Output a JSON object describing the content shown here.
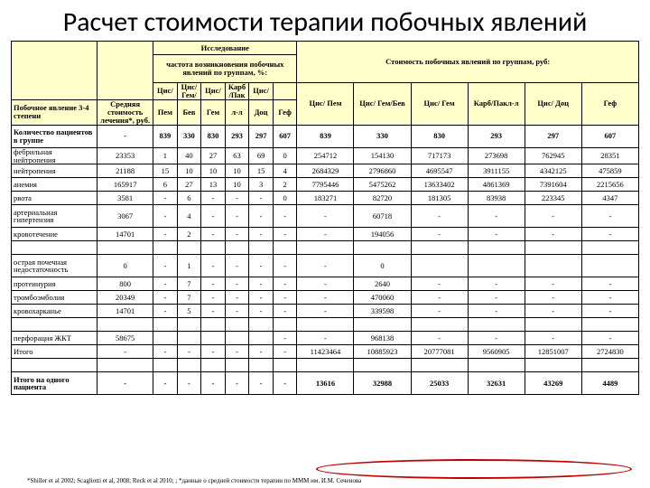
{
  "title": "Расчет стоимости терапии побочных явлений",
  "headers": {
    "study": "Исследование",
    "freq_block": "частота возникновения побочных явлений по группам, %:",
    "cost_block": "Стоимость побочных явлений по группам, руб:",
    "side_effect": "Побочное явление 3-4 степени",
    "avg_cost": "Средняя стоимость лечения*, руб.",
    "f": {
      "c1a": "Цис/",
      "c1b": "Пем",
      "c2a": "Цис/ Гем/",
      "c2b": "Бев",
      "c3a": "Цис/",
      "c3b": "Гем",
      "c4a": "Карб /Пак",
      "c4b": "л-л",
      "c5a": "Цис/",
      "c5b": "Доц",
      "c6a": "",
      "c6b": "Геф"
    },
    "cost": {
      "c1": "Цис/ Пем",
      "c2": "Цис/ Гем/Бев",
      "c3": "Цис/ Гем",
      "c4": "Карб/Пакл-л",
      "c5": "Цис/ Доц",
      "c6": "Геф"
    }
  },
  "rows": [
    {
      "label": "Количество пациентов в группе",
      "bold": true,
      "avg": "-",
      "f": [
        "839",
        "330",
        "830",
        "293",
        "297",
        "607"
      ],
      "c": [
        "839",
        "330",
        "830",
        "293",
        "297",
        "607"
      ],
      "spacer": false,
      "tall": true
    },
    {
      "label": "фебрильная нейтропения",
      "avg": "23353",
      "f": [
        "1",
        "40",
        "27",
        "63",
        "69",
        "0"
      ],
      "c": [
        "254712",
        "154130",
        "717173",
        "273698",
        "762945",
        "28351"
      ]
    },
    {
      "label": "нейтропения",
      "avg": "21188",
      "f": [
        "15",
        "10",
        "10",
        "10",
        "15",
        "4"
      ],
      "c": [
        "2684329",
        "2796860",
        "4695547",
        "3911155",
        "4342125",
        "475859"
      ]
    },
    {
      "label": "анемия",
      "avg": "165917",
      "f": [
        "6",
        "27",
        "13",
        "10",
        "3",
        "2"
      ],
      "c": [
        "7795446",
        "5475262",
        "13633402",
        "4861369",
        "7391604",
        "2215656"
      ]
    },
    {
      "label": "рвота",
      "avg": "3581",
      "f": [
        "-",
        "6",
        "-",
        "-",
        "-",
        "0"
      ],
      "c": [
        "183271",
        "82720",
        "181305",
        "83938",
        "223345",
        "4347"
      ]
    },
    {
      "label": "артериальная гипертензия",
      "avg": "3067",
      "f": [
        "-",
        "4",
        "-",
        "-",
        "-",
        "-"
      ],
      "c": [
        "-",
        "60718",
        "-",
        "-",
        "-",
        "-"
      ],
      "tall": true
    },
    {
      "label": "кровотечение",
      "avg": "14701",
      "f": [
        "-",
        "2",
        "-",
        "-",
        "-",
        "-"
      ],
      "c": [
        "-",
        "194056",
        "-",
        "-",
        "-",
        "-"
      ]
    },
    {
      "spacer": true
    },
    {
      "label": "острая почечная недостаточность",
      "avg": "0",
      "f": [
        "-",
        "1",
        "-",
        "-",
        "-",
        "-"
      ],
      "c": [
        "-",
        "0",
        "",
        "",
        "",
        ""
      ],
      "tall": true
    },
    {
      "label": "протеинурия",
      "avg": "800",
      "f": [
        "-",
        "7",
        "-",
        "-",
        "-",
        "-"
      ],
      "c": [
        "-",
        "2640",
        "-",
        "-",
        "-",
        "-"
      ]
    },
    {
      "label": "тромбоэмболия",
      "avg": "20349",
      "f": [
        "-",
        "7",
        "-",
        "-",
        "-",
        "-"
      ],
      "c": [
        "-",
        "470060",
        "-",
        "-",
        "-",
        "-"
      ]
    },
    {
      "label": "кровохарканье",
      "avg": "14701",
      "f": [
        "-",
        "5",
        "-",
        "-",
        "-",
        "-"
      ],
      "c": [
        "-",
        "339598",
        "-",
        "-",
        "-",
        "-"
      ]
    },
    {
      "spacer": true
    },
    {
      "label": "перфорация ЖКТ",
      "avg": "58675",
      "f": [
        "",
        "",
        "",
        "",
        "",
        "-"
      ],
      "c": [
        "-",
        "968138",
        "-",
        "-",
        "-",
        "-"
      ]
    },
    {
      "label": "Итого",
      "avg": "-",
      "f": [
        "-",
        "-",
        "-",
        "-",
        "-",
        "-"
      ],
      "c": [
        "11423464",
        "10885923",
        "20777081",
        "9560905",
        "12851007",
        "2724830"
      ]
    },
    {
      "spacer": true
    },
    {
      "label": "Итого на одного пациента",
      "bold": true,
      "avg": "-",
      "f": [
        "-",
        "-",
        "-",
        "-",
        "-",
        "-"
      ],
      "c": [
        "13616",
        "32988",
        "25033",
        "32631",
        "43269",
        "4489"
      ],
      "tall": true
    }
  ],
  "footnote": "*Shiller et al 2002; Scagliotti et al, 2008; Reck et al 2010; ; *данные о средней стоимости терапии по МММ им. И.М. Сеченова"
}
